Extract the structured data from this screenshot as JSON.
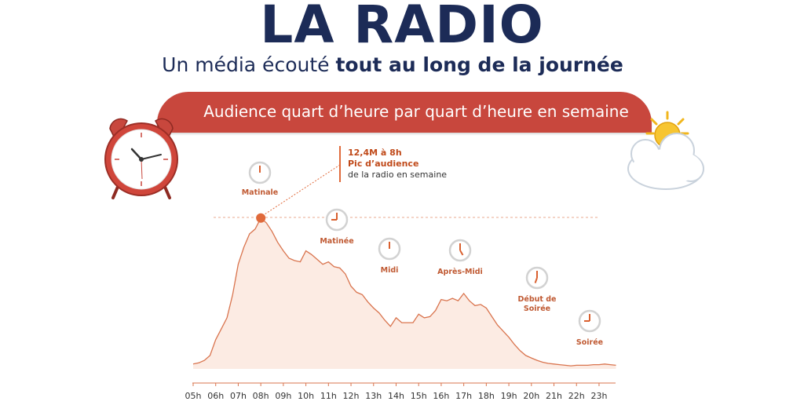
{
  "header": {
    "title": "LA RADIO",
    "subtitle_pre": "Un média écouté ",
    "subtitle_bold": "tout au long de la journée"
  },
  "banner": {
    "text": "Audience quart d’heure par quart d’heure en semaine"
  },
  "annotation": {
    "line1": "12,4M à 8h",
    "line2": "Pic d’audience",
    "line3": "de la radio en semaine"
  },
  "periods": [
    {
      "name": "Matinale",
      "icon": "clock-icon"
    },
    {
      "name": "Matinée",
      "icon": "clock-icon"
    },
    {
      "name": "Midi",
      "icon": "clock-icon"
    },
    {
      "name": "Après-Midi",
      "icon": "clock-icon"
    },
    {
      "name": "Début de\nSoirée",
      "icon": "clock-icon"
    },
    {
      "name": "Soirée",
      "icon": "clock-icon"
    }
  ],
  "decor": {
    "left": "alarm-clock-icon",
    "right": "sun-cloud-icon"
  },
  "colors": {
    "title": "#1c2b57",
    "banner": "#c8473d",
    "area_fill": "#fcebe3",
    "line": "#d9744e",
    "accent": "#e06a3b"
  },
  "chart_data": {
    "type": "area",
    "title": "Audience quart d’heure par quart d’heure en semaine",
    "xlabel": "",
    "ylabel": "",
    "x_ticks": [
      "05h",
      "06h",
      "07h",
      "08h",
      "09h",
      "10h",
      "11h",
      "12h",
      "13h",
      "14h",
      "15h",
      "16h",
      "17h",
      "18h",
      "19h",
      "20h",
      "21h",
      "22h",
      "23h"
    ],
    "series": [
      {
        "x": [
          5,
          5.25,
          5.5,
          5.75,
          6,
          6.25,
          6.5,
          6.75,
          7,
          7.25,
          7.5,
          7.75,
          8,
          8.25,
          8.5,
          8.75,
          9,
          9.25,
          9.5,
          9.75,
          10,
          10.25,
          10.5,
          10.75,
          11,
          11.25,
          11.5,
          11.75,
          12,
          12.25,
          12.5,
          12.75,
          13,
          13.25,
          13.5,
          13.75,
          14,
          14.25,
          14.5,
          14.75,
          15,
          15.25,
          15.5,
          15.75,
          16,
          16.25,
          16.5,
          16.75,
          17,
          17.25,
          17.5,
          17.75,
          18,
          18.25,
          18.5,
          18.75,
          19,
          19.25,
          19.5,
          19.75,
          20,
          20.25,
          20.5,
          20.75,
          21,
          21.25,
          21.5,
          21.75,
          22,
          22.25,
          22.5,
          22.75,
          23,
          23.25,
          23.5,
          23.75
        ],
        "values": [
          0.4,
          0.5,
          0.7,
          1.1,
          2.4,
          3.3,
          4.2,
          6.1,
          8.6,
          10.0,
          11.1,
          11.5,
          12.4,
          12.0,
          11.3,
          10.4,
          9.7,
          9.1,
          8.9,
          8.8,
          9.7,
          9.4,
          9.0,
          8.6,
          8.8,
          8.4,
          8.3,
          7.8,
          6.8,
          6.3,
          6.1,
          5.5,
          5.0,
          4.6,
          4.0,
          3.5,
          4.2,
          3.8,
          3.8,
          3.8,
          4.5,
          4.2,
          4.3,
          4.8,
          5.7,
          5.6,
          5.8,
          5.6,
          6.2,
          5.6,
          5.2,
          5.3,
          5.0,
          4.3,
          3.6,
          3.1,
          2.6,
          2.0,
          1.5,
          1.1,
          0.9,
          0.7,
          0.55,
          0.45,
          0.4,
          0.35,
          0.3,
          0.25,
          0.3,
          0.3,
          0.3,
          0.35,
          0.35,
          0.4,
          0.35,
          0.3
        ]
      }
    ],
    "peak": {
      "x": 8,
      "value": 12.4
    },
    "grid": false,
    "legend": "none"
  }
}
